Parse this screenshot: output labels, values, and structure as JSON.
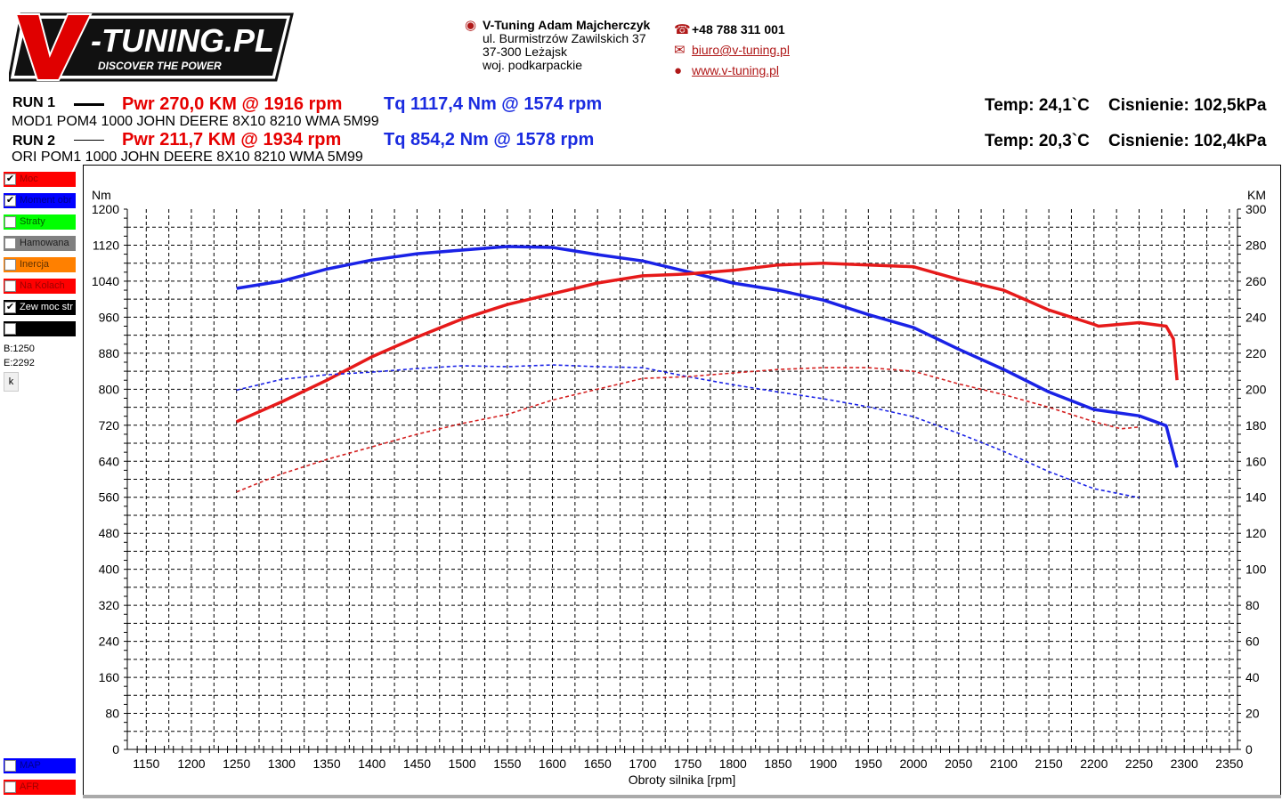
{
  "logo": {
    "text": "V-TUNING.PL",
    "tagline": "DISCOVER THE POWER"
  },
  "contact": {
    "name": "V-Tuning Adam Majcherczyk",
    "street": "ul. Burmistrzów Zawilskich 37",
    "city": "37-300 Leżajsk",
    "region": "woj. podkarpackie",
    "phone": "+48 788 311 001",
    "email": "biuro@v-tuning.pl",
    "website": "www.v-tuning.pl",
    "accent": "#b01818"
  },
  "runs": [
    {
      "label": "RUN 1",
      "pwr": "Pwr  270,0 KM @ 1916 rpm",
      "tq": "Tq 1117,4 Nm @ 1574 rpm",
      "desc": "MOD1 POM4 1000 JOHN DEERE 8X10 8210 WMA 5M99",
      "temp": "Temp: 24,1`C",
      "pressure": "Cisnienie: 102,5kPa"
    },
    {
      "label": "RUN 2",
      "pwr": "Pwr  211,7 KM @ 1934 rpm",
      "tq": "Tq 854,2 Nm @ 1578 rpm",
      "desc": "ORI POM1 1000 JOHN DEERE 8X10 8210 WMA 5M99",
      "temp": "Temp: 20,3`C",
      "pressure": "Cisnienie: 102,4kPa"
    }
  ],
  "sidebar": {
    "items": [
      {
        "label": "Moc",
        "bg": "#ff0000",
        "fg": "#a00000",
        "checked": true
      },
      {
        "label": "Moment obr",
        "bg": "#0000ff",
        "fg": "#00008a",
        "checked": true
      },
      {
        "label": "Straty",
        "bg": "#00ff00",
        "fg": "#006000",
        "checked": false
      },
      {
        "label": "Hamowana",
        "bg": "#808080",
        "fg": "#202020",
        "checked": false
      },
      {
        "label": "Inercja",
        "bg": "#ff8000",
        "fg": "#603000",
        "checked": false
      },
      {
        "label": "Na Kolach",
        "bg": "#ff0000",
        "fg": "#a00000",
        "checked": false
      },
      {
        "label": "Zew moc str",
        "bg": "#000000",
        "fg": "#ffffff",
        "checked": true
      },
      {
        "label": "",
        "bg": "#000000",
        "fg": "#ffffff",
        "checked": false
      }
    ],
    "begin": "B:1250",
    "end": "E:2292",
    "k_button": "k",
    "bottom_items": [
      {
        "label": "MAP",
        "bg": "#0000ff",
        "fg": "#00008a",
        "checked": false
      },
      {
        "label": "AFR",
        "bg": "#ff0000",
        "fg": "#a00000",
        "checked": false
      }
    ]
  },
  "chart_data": {
    "type": "line",
    "xlabel": "Obroty silnika [rpm]",
    "ylabel_left": "Nm",
    "ylabel_right": "KM",
    "xlim": [
      1129,
      2359
    ],
    "ylim_left": [
      0,
      1200
    ],
    "ylim_right": [
      0,
      300
    ],
    "xticks": [
      1150,
      1200,
      1250,
      1300,
      1350,
      1400,
      1450,
      1500,
      1550,
      1600,
      1650,
      1700,
      1750,
      1800,
      1850,
      1900,
      1950,
      2000,
      2050,
      2100,
      2150,
      2200,
      2250,
      2300,
      2350
    ],
    "yticks_left": [
      0,
      80,
      160,
      240,
      320,
      400,
      480,
      560,
      640,
      720,
      800,
      880,
      960,
      1040,
      1120,
      1200
    ],
    "yticks_right": [
      0,
      20,
      40,
      60,
      80,
      100,
      120,
      140,
      160,
      180,
      200,
      220,
      240,
      260,
      280,
      300
    ],
    "grid": true,
    "series": [
      {
        "name": "RUN 1 Moment obr",
        "axis": "left",
        "color": "#1a22e6",
        "style": "solid",
        "x": [
          1250,
          1300,
          1350,
          1400,
          1450,
          1500,
          1550,
          1600,
          1650,
          1700,
          1750,
          1800,
          1850,
          1900,
          1950,
          2000,
          2050,
          2100,
          2150,
          2200,
          2250,
          2280,
          2292
        ],
        "y": [
          1024,
          1040,
          1067,
          1087,
          1101,
          1109,
          1117,
          1115,
          1099,
          1085,
          1061,
          1036,
          1020,
          998,
          966,
          937,
          889,
          844,
          794,
          755,
          741,
          719,
          626
        ]
      },
      {
        "name": "RUN 1 Moc",
        "axis": "right",
        "color": "#e61a1a",
        "style": "solid",
        "x": [
          1250,
          1300,
          1350,
          1400,
          1450,
          1500,
          1550,
          1600,
          1650,
          1700,
          1750,
          1800,
          1850,
          1900,
          1950,
          2000,
          2050,
          2100,
          2150,
          2200,
          2205,
          2250,
          2280,
          2288,
          2292
        ],
        "y": [
          182,
          193,
          205,
          218,
          229,
          239,
          247,
          253,
          259,
          263,
          264,
          266,
          269,
          270,
          269,
          268,
          261,
          255,
          244,
          236,
          235,
          237,
          235,
          228,
          205
        ]
      },
      {
        "name": "RUN 2 Moment obr",
        "axis": "left",
        "color": "#1a22e6",
        "style": "dashed",
        "x": [
          1250,
          1300,
          1350,
          1400,
          1450,
          1500,
          1550,
          1600,
          1650,
          1700,
          1750,
          1800,
          1850,
          1900,
          1950,
          2000,
          2050,
          2100,
          2150,
          2200,
          2250
        ],
        "y": [
          798,
          822,
          832,
          838,
          846,
          852,
          850,
          854,
          850,
          848,
          828,
          810,
          794,
          779,
          761,
          739,
          702,
          662,
          617,
          579,
          559
        ]
      },
      {
        "name": "RUN 2 Moc",
        "axis": "right",
        "color": "#d42020",
        "style": "dashed",
        "x": [
          1250,
          1300,
          1350,
          1400,
          1450,
          1500,
          1550,
          1600,
          1650,
          1700,
          1750,
          1800,
          1850,
          1900,
          1950,
          2000,
          2050,
          2100,
          2150,
          2200,
          2230,
          2250
        ],
        "y": [
          143,
          153,
          161,
          168,
          175,
          181,
          186,
          194,
          200,
          206,
          207,
          209,
          211,
          212,
          212,
          210,
          203,
          197,
          190,
          182,
          178,
          179
        ]
      }
    ]
  }
}
